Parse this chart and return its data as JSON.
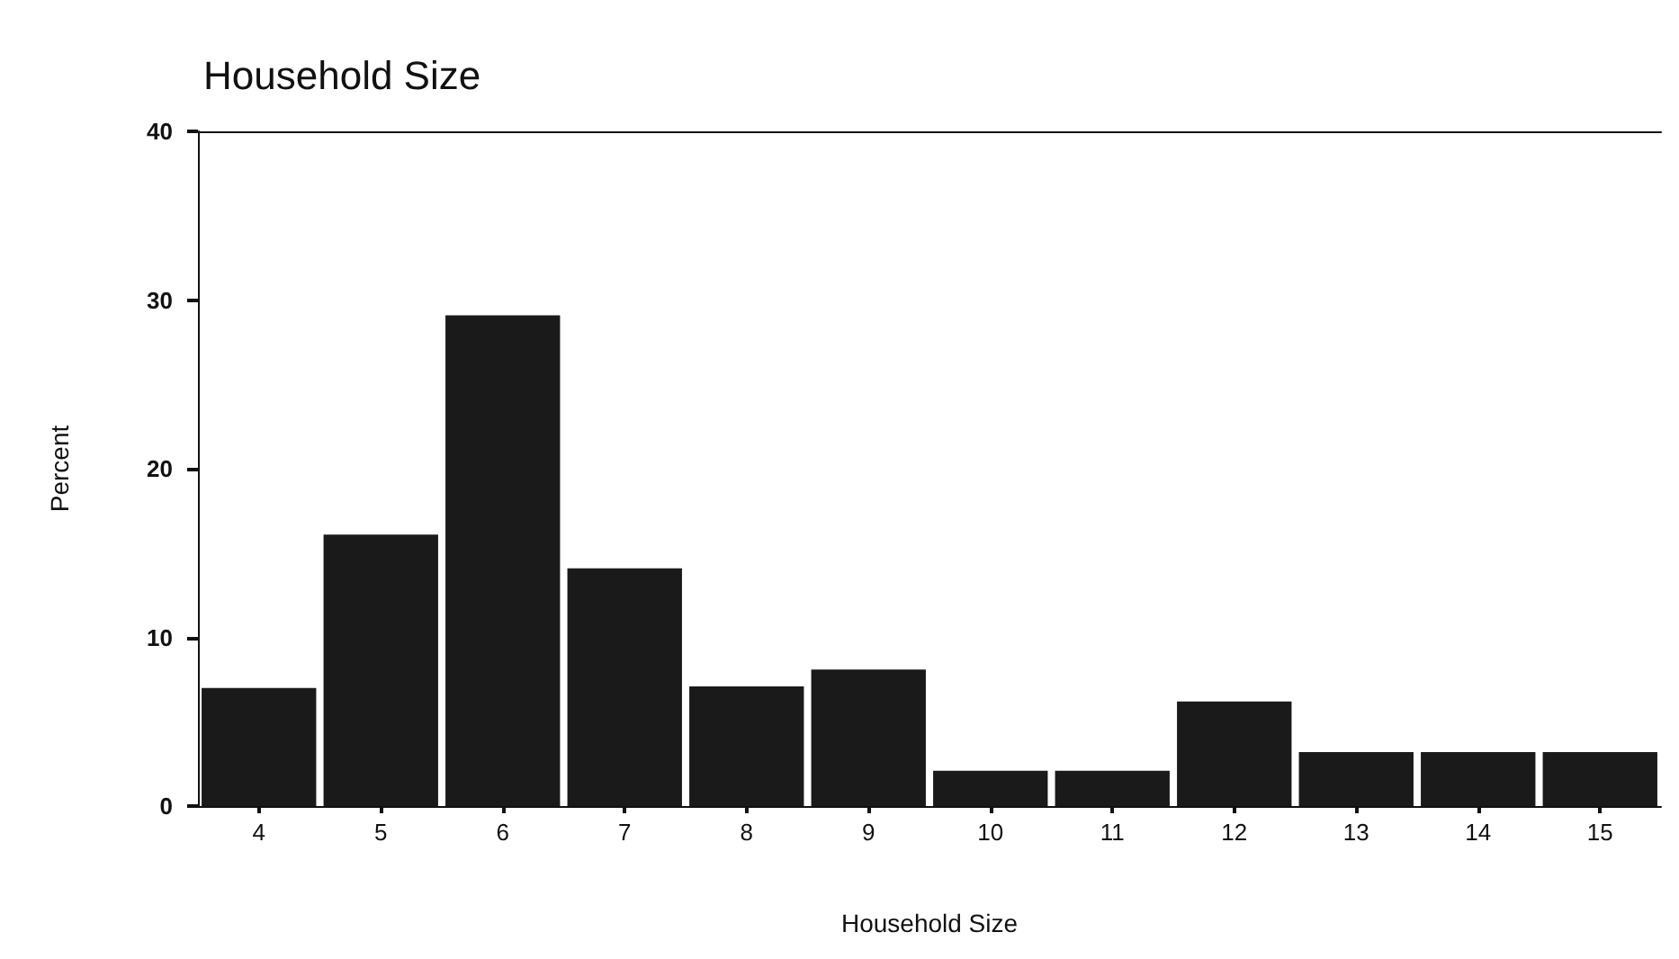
{
  "chart_data": {
    "type": "bar",
    "title": "Household Size",
    "xlabel": "Household Size",
    "ylabel": "Percent",
    "categories": [
      "4",
      "5",
      "6",
      "7",
      "8",
      "9",
      "10",
      "11",
      "12",
      "13",
      "14",
      "15"
    ],
    "values": [
      7,
      16.1,
      29.1,
      14.1,
      7.1,
      8.1,
      2.1,
      2.1,
      6.2,
      3.2,
      3.2,
      3.2
    ],
    "color": "#1a1a1a",
    "ylim": [
      0,
      40
    ],
    "yticks": [
      0,
      10,
      20,
      30,
      40
    ],
    "grid": false
  }
}
